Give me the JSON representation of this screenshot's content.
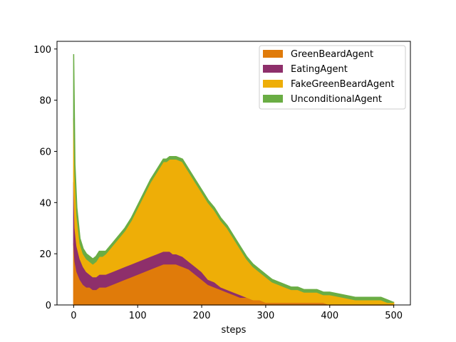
{
  "chart_data": {
    "type": "area",
    "stacked": true,
    "title": "",
    "xlabel": "steps",
    "ylabel": "",
    "xlim": [
      -26,
      526
    ],
    "ylim": [
      0,
      103
    ],
    "xticks": [
      0,
      100,
      200,
      300,
      400,
      500
    ],
    "yticks": [
      0,
      20,
      40,
      60,
      80,
      100
    ],
    "legend_position": "top-right",
    "x": [
      0,
      2,
      5,
      10,
      15,
      20,
      25,
      30,
      35,
      40,
      45,
      50,
      60,
      70,
      80,
      90,
      100,
      110,
      120,
      130,
      140,
      145,
      150,
      155,
      160,
      170,
      180,
      190,
      200,
      210,
      220,
      230,
      240,
      250,
      260,
      270,
      280,
      290,
      300,
      310,
      320,
      330,
      340,
      350,
      360,
      370,
      380,
      390,
      400,
      420,
      440,
      460,
      480,
      490,
      500
    ],
    "series": [
      {
        "name": "GreenBeardAgent",
        "color": "#e07b0a",
        "values": [
          24,
          17,
          13,
          10,
          8,
          7,
          7,
          6,
          6,
          7,
          7,
          7,
          8,
          9,
          10,
          11,
          12,
          13,
          14,
          15,
          16,
          16,
          16,
          16,
          16,
          15,
          14,
          12,
          10,
          8,
          7,
          6,
          5,
          4,
          3,
          3,
          2,
          2,
          1,
          1,
          1,
          1,
          1,
          1,
          1,
          1,
          1,
          1,
          0,
          0,
          0,
          0,
          0,
          0,
          0
        ]
      },
      {
        "name": "EatingAgent",
        "color": "#8e2f6b",
        "values": [
          24,
          13,
          10,
          8,
          7,
          6,
          5,
          5,
          5,
          5,
          5,
          5,
          5,
          5,
          5,
          5,
          5,
          5,
          5,
          5,
          5,
          5,
          5,
          4,
          4,
          4,
          3,
          3,
          3,
          2,
          2,
          1,
          1,
          1,
          1,
          0,
          0,
          0,
          0,
          0,
          0,
          0,
          0,
          0,
          0,
          0,
          0,
          0,
          0,
          0,
          0,
          0,
          0,
          0,
          0
        ]
      },
      {
        "name": "FakeGreenBeardAgent",
        "color": "#eeae07",
        "values": [
          25,
          21,
          12,
          6,
          5,
          5,
          5,
          5,
          6,
          7,
          7,
          8,
          10,
          12,
          14,
          17,
          21,
          25,
          29,
          32,
          35,
          35,
          36,
          37,
          37,
          37,
          35,
          33,
          31,
          30,
          28,
          26,
          24,
          21,
          18,
          15,
          13,
          11,
          10,
          8,
          7,
          6,
          5,
          5,
          4,
          4,
          4,
          3,
          4,
          3,
          2,
          2,
          2,
          1,
          1
        ]
      },
      {
        "name": "UnconditionalAgent",
        "color": "#6aad44",
        "values": [
          25,
          4,
          3,
          2,
          2,
          2,
          2,
          2,
          2,
          2,
          2,
          1,
          1,
          1,
          1,
          1,
          1,
          1,
          1,
          1,
          1,
          1,
          1,
          1,
          1,
          1,
          1,
          1,
          1,
          1,
          1,
          1,
          1,
          1,
          1,
          1,
          1,
          1,
          1,
          1,
          1,
          1,
          1,
          1,
          1,
          1,
          1,
          1,
          1,
          1,
          1,
          1,
          1,
          1,
          0
        ]
      }
    ]
  }
}
